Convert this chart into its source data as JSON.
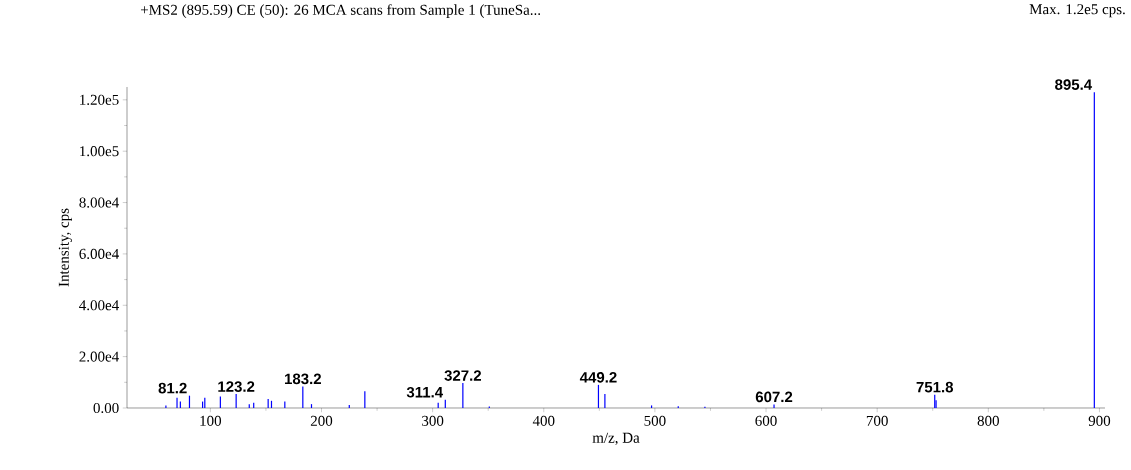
{
  "chart_data": {
    "type": "bar",
    "title": "+MS2 (895.59) CE (50): 26 MCA scans from Sample 1 (TuneSa...",
    "subtitle": "Max. 1.2e5 cps.",
    "xlabel": "m/z, Da",
    "ylabel": "Intensity, cps",
    "x": [
      60,
      70,
      73,
      81.2,
      93,
      95,
      109,
      123.2,
      135,
      139,
      152,
      155,
      167,
      183.2,
      191,
      225,
      239,
      305,
      311.4,
      327.2,
      351,
      449.2,
      455,
      497,
      521,
      545,
      607.2,
      751.8,
      753,
      895.4
    ],
    "values": [
      1000,
      4000,
      2500,
      4800,
      2500,
      4000,
      4500,
      5400,
      1500,
      2000,
      3500,
      2800,
      2500,
      8400,
      1500,
      1200,
      6500,
      2000,
      3200,
      9700,
      600,
      9000,
      5400,
      1000,
      700,
      500,
      1400,
      5200,
      3000,
      123000
    ],
    "color": "#0000ff",
    "xlim": [
      25,
      905
    ],
    "xticks": [
      100,
      200,
      300,
      400,
      500,
      600,
      700,
      800,
      900
    ],
    "ylim": [
      0,
      125000
    ],
    "yticks": [
      {
        "value": 0,
        "label": "0.00"
      },
      {
        "value": 20000,
        "label": "2.00e4"
      },
      {
        "value": 40000,
        "label": "4.00e4"
      },
      {
        "value": 60000,
        "label": "6.00e4"
      },
      {
        "value": 80000,
        "label": "8.00e4"
      },
      {
        "value": 100000,
        "label": "1.00e5"
      },
      {
        "value": 120000,
        "label": "1.20e5"
      }
    ],
    "annotations": [
      {
        "text": "81.2",
        "x": 81.2,
        "y": 4800
      },
      {
        "text": "123.2",
        "x": 123.2,
        "y": 5400
      },
      {
        "text": "183.2",
        "x": 183.2,
        "y": 8400
      },
      {
        "text": "311.4",
        "x": 311.4,
        "y": 3200
      },
      {
        "text": "327.2",
        "x": 327.2,
        "y": 9700
      },
      {
        "text": "449.2",
        "x": 449.2,
        "y": 9000
      },
      {
        "text": "607.2",
        "x": 607.2,
        "y": 1400
      },
      {
        "text": "751.8",
        "x": 751.8,
        "y": 5200
      },
      {
        "text": "895.4",
        "x": 895.4,
        "y": 123000
      }
    ],
    "grid": false
  }
}
